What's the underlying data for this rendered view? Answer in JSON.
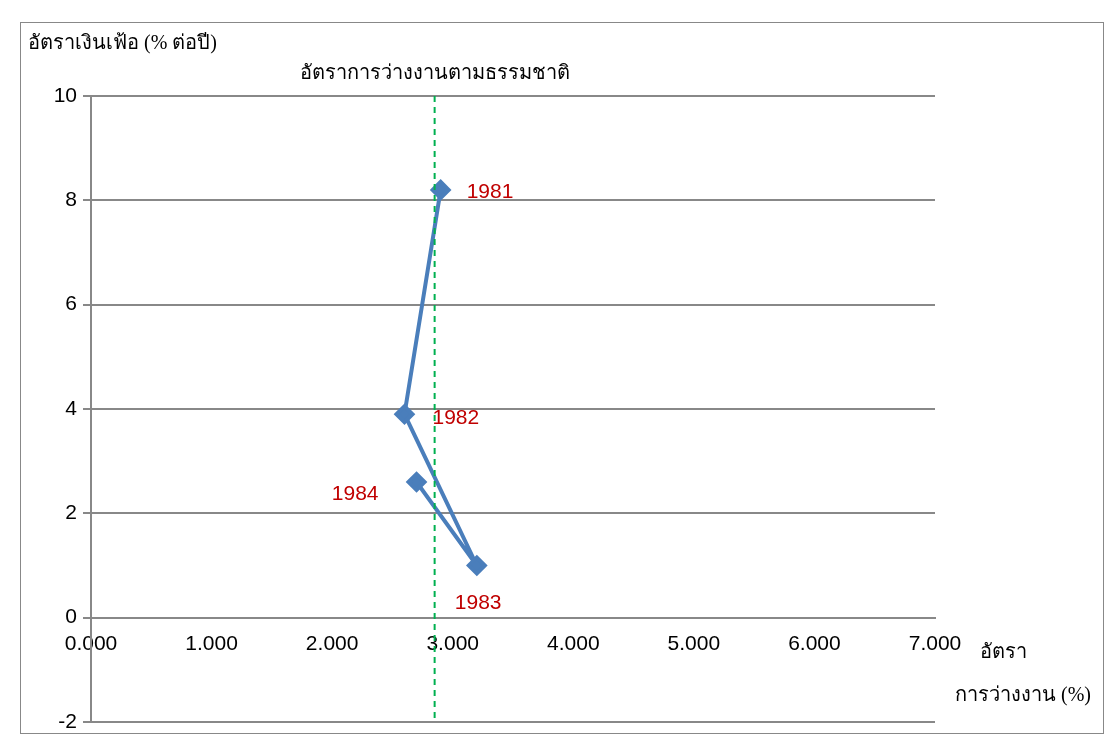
{
  "chart_data": {
    "type": "line",
    "ylabel": "อัตราเงินเฟ้อ (% ต่อปี)",
    "xlabel": "อัตรา การว่างงาน (%)",
    "x": [
      2.9,
      2.6,
      3.2,
      2.7
    ],
    "series": [
      {
        "color": "#4a7ebb",
        "values": [
          8.2,
          3.9,
          1.0,
          2.6
        ]
      }
    ],
    "xlim": [
      0,
      7
    ],
    "xticks": [
      {
        "value": 0,
        "label": "0.000"
      },
      {
        "value": 1,
        "label": "1.000"
      },
      {
        "value": 2,
        "label": "2.000"
      },
      {
        "value": 3,
        "label": "3.000"
      },
      {
        "value": 4,
        "label": "4.000"
      },
      {
        "value": 5,
        "label": "5.000"
      },
      {
        "value": 6,
        "label": "6.000"
      },
      {
        "value": 7,
        "label": "7.000"
      }
    ],
    "ylim": [
      -2,
      10
    ],
    "yticks": [
      -2,
      0,
      2,
      4,
      6,
      8,
      10
    ],
    "grid": "y",
    "legend": false,
    "marker": "diamond",
    "line_style": "solid",
    "ref_lines": [
      {
        "axis": "x",
        "value": 2.85,
        "label": "อัตราการว่างงานตามธรรมชาติ",
        "color": "#00b050",
        "line_style": "dashed"
      }
    ],
    "annotations": [
      {
        "text": "1981",
        "x": 2.9,
        "y": 8.2
      },
      {
        "text": "1982",
        "x": 2.6,
        "y": 3.9
      },
      {
        "text": "1983",
        "x": 3.2,
        "y": 1.0
      },
      {
        "text": "1984",
        "x": 2.7,
        "y": 2.6
      }
    ]
  }
}
